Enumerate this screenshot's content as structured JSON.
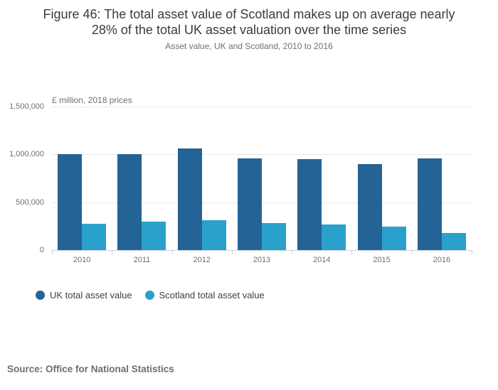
{
  "header": {
    "title": "Figure 46: The total asset value of Scotland makes up on average nearly 28% of the total UK asset valuation over the time series",
    "subtitle": "Asset value, UK and Scotland, 2010 to 2016"
  },
  "footer": {
    "source": "Source: Office for National Statistics"
  },
  "chart_data": {
    "type": "bar",
    "title": "Figure 46: The total asset value of Scotland makes up on average nearly 28% of the total UK asset valuation over the time series",
    "subtitle": "Asset value, UK and Scotland, 2010 to 2016",
    "unit_label": "£ million, 2018 prices",
    "categories": [
      "2010",
      "2011",
      "2012",
      "2013",
      "2014",
      "2015",
      "2016"
    ],
    "series": [
      {
        "key": "uk",
        "name": "UK total asset value",
        "color": "#236395",
        "values": [
          1005000,
          1005000,
          1060000,
          960000,
          950000,
          895000,
          955000
        ]
      },
      {
        "key": "scotland",
        "name": "Scotland total asset value",
        "color": "#29a1cb",
        "values": [
          275000,
          295000,
          310000,
          280000,
          270000,
          245000,
          180000
        ]
      }
    ],
    "y_ticks": [
      {
        "label": "0",
        "value": 0
      },
      {
        "label": "500,000",
        "value": 500000
      },
      {
        "label": "1,000,000",
        "value": 1000000
      },
      {
        "label": "1,500,000",
        "value": 1500000
      }
    ],
    "ylim": [
      0,
      1500000
    ],
    "xlabel": "",
    "ylabel": "£ million, 2018 prices",
    "grid": true,
    "legend_position": "bottom-left"
  }
}
